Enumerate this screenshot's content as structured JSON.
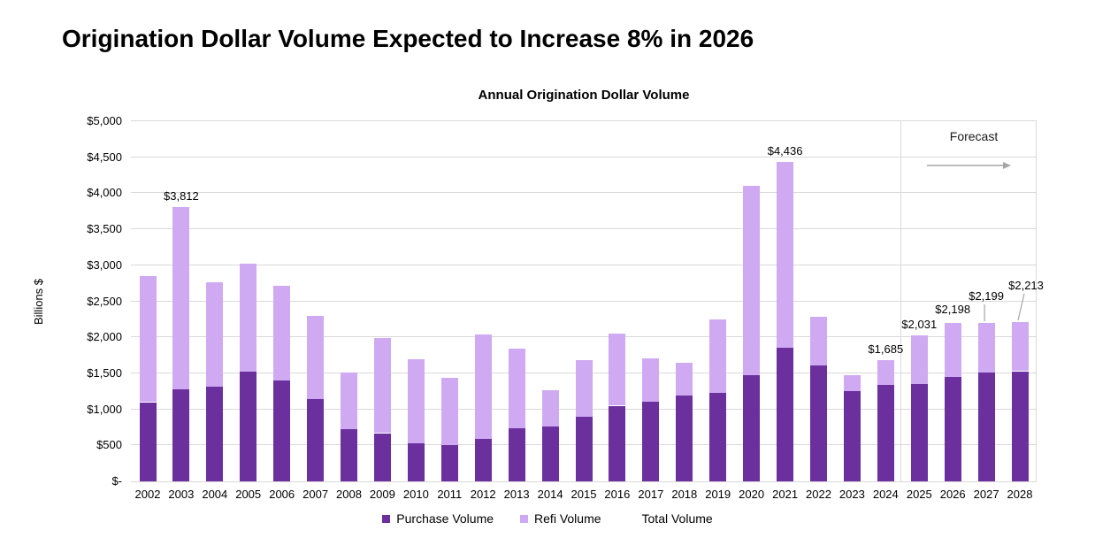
{
  "page": {
    "title": "Origination Dollar Volume Expected to Increase 8% in 2026"
  },
  "chart": {
    "title": "Annual Origination Dollar Volume",
    "y_axis_label": "Billions $",
    "forecast_label": "Forecast",
    "forecast_arrow_icon": "right-arrow",
    "colors": {
      "purchase": "#6B2F9E",
      "refi": "#CFA9F2",
      "gridline": "#d9d9d9",
      "arrow": "#a6a6a6",
      "leader": "#a6a6a6"
    },
    "legend": [
      {
        "label": "Purchase Volume",
        "color": "#6B2F9E"
      },
      {
        "label": "Refi Volume",
        "color": "#CFA9F2"
      },
      {
        "label": "Total Volume",
        "color": null
      }
    ]
  },
  "chart_data": {
    "type": "bar",
    "stacked": true,
    "title": "Annual Origination Dollar Volume",
    "xlabel": "",
    "ylabel": "Billions $",
    "ylim": [
      0,
      5000
    ],
    "ytick_step": 500,
    "ytick_labels": [
      "$-",
      "$500",
      "$1,000",
      "$1,500",
      "$2,000",
      "$2,500",
      "$3,000",
      "$3,500",
      "$4,000",
      "$4,500",
      "$5,000"
    ],
    "grid": true,
    "legend_position": "bottom",
    "categories": [
      "2002",
      "2003",
      "2004",
      "2005",
      "2006",
      "2007",
      "2008",
      "2009",
      "2010",
      "2011",
      "2012",
      "2013",
      "2014",
      "2015",
      "2016",
      "2017",
      "2018",
      "2019",
      "2020",
      "2021",
      "2022",
      "2023",
      "2024",
      "2025",
      "2026",
      "2027",
      "2028"
    ],
    "series": [
      {
        "name": "Purchase Volume",
        "color": "#6B2F9E",
        "values": [
          1100,
          1280,
          1310,
          1520,
          1400,
          1140,
          730,
          670,
          530,
          505,
          590,
          740,
          760,
          900,
          1050,
          1110,
          1190,
          1230,
          1480,
          1850,
          1610,
          1250,
          1340,
          1350,
          1450,
          1510,
          1530
        ]
      },
      {
        "name": "Refi Volume",
        "color": "#CFA9F2",
        "values": [
          1750,
          2532,
          1460,
          1500,
          1310,
          1160,
          780,
          1320,
          1170,
          930,
          1450,
          1100,
          500,
          780,
          1000,
          600,
          460,
          1020,
          2620,
          2586,
          680,
          230,
          345,
          681,
          748,
          689,
          683
        ]
      }
    ],
    "totals": [
      2850,
      3812,
      2770,
      3020,
      2710,
      2300,
      1510,
      1990,
      1700,
      1435,
      2040,
      1840,
      1260,
      1680,
      2050,
      1710,
      1650,
      2250,
      4100,
      4436,
      2290,
      1480,
      1685,
      2031,
      2198,
      2199,
      2213
    ],
    "annotations": [
      {
        "category": "2003",
        "text": "$3,812",
        "raise": 0,
        "dx": 0,
        "leader": false
      },
      {
        "category": "2021",
        "text": "$4,436",
        "raise": 0,
        "dx": 0,
        "leader": false
      },
      {
        "category": "2024",
        "text": "$1,685",
        "raise": 0,
        "dx": 0,
        "leader": false
      },
      {
        "category": "2025",
        "text": "$2,031",
        "raise": 0,
        "dx": 0,
        "leader": false
      },
      {
        "category": "2026",
        "text": "$2,198",
        "raise": 3,
        "dx": 0,
        "leader": false
      },
      {
        "category": "2027",
        "text": "$2,199",
        "raise": 18,
        "dx": 0,
        "leader": true
      },
      {
        "category": "2028",
        "text": "$2,213",
        "raise": 29,
        "dx": 7,
        "leader": true
      }
    ],
    "forecast": {
      "label": "Forecast",
      "starts_after_category": "2024"
    }
  }
}
